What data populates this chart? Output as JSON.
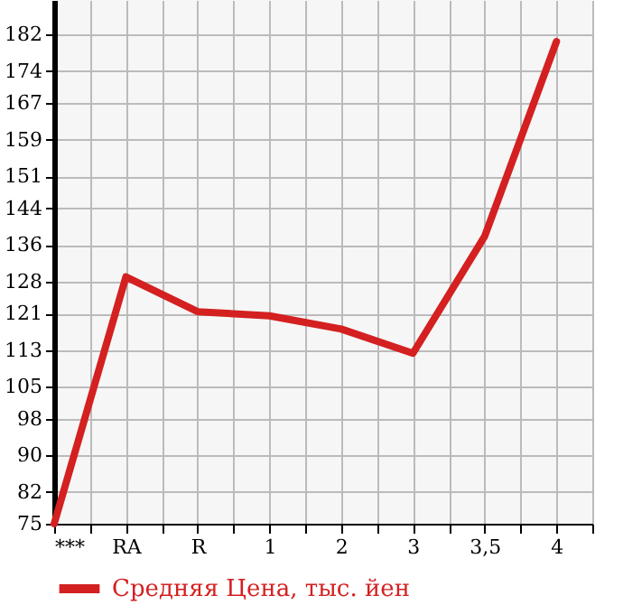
{
  "chart_data": {
    "type": "line",
    "categories": [
      "***",
      "RA",
      "R",
      "1",
      "2",
      "3",
      "3,5",
      "4"
    ],
    "series": [
      {
        "name": "Средняя Цена, тыс. йен",
        "color": "#d42020",
        "values": [
          75,
          129,
          121.4,
          120.5,
          117.6,
          112.3,
          137.9,
          180.5
        ]
      }
    ],
    "ylim": [
      75,
      189.6
    ],
    "yticks": [
      75,
      82,
      90,
      98,
      105,
      113,
      121,
      128,
      136,
      144,
      151,
      159,
      167,
      174,
      182
    ],
    "grid": true,
    "legend": "bottom",
    "marker": "none",
    "line_style": "solid"
  }
}
